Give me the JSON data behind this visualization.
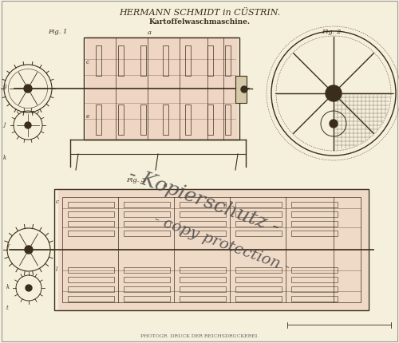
{
  "title": "HERMANN SCHMIDT in CÜSTRIN.",
  "subtitle": "Kartoffelwaschmaschine.",
  "footer": "PHOTOGR. DRUCK DER REICHSDRUCKEREI.",
  "background_color": "#f5f0dc",
  "drawing_color": "#3a2e1a",
  "fig1_label": "Fig. 1",
  "fig2_label": "Fig. 2",
  "fig3_label": "Fig. 3",
  "watermark_line1": "- Kopierschutz -",
  "watermark_line2": "- copy protection -",
  "pink_fill": "#e8b8a8",
  "title_fontsize": 8,
  "subtitle_fontsize": 6.5,
  "footer_fontsize": 4.5,
  "label_fontsize": 6,
  "watermark_fontsize1": 18,
  "watermark_fontsize2": 14
}
